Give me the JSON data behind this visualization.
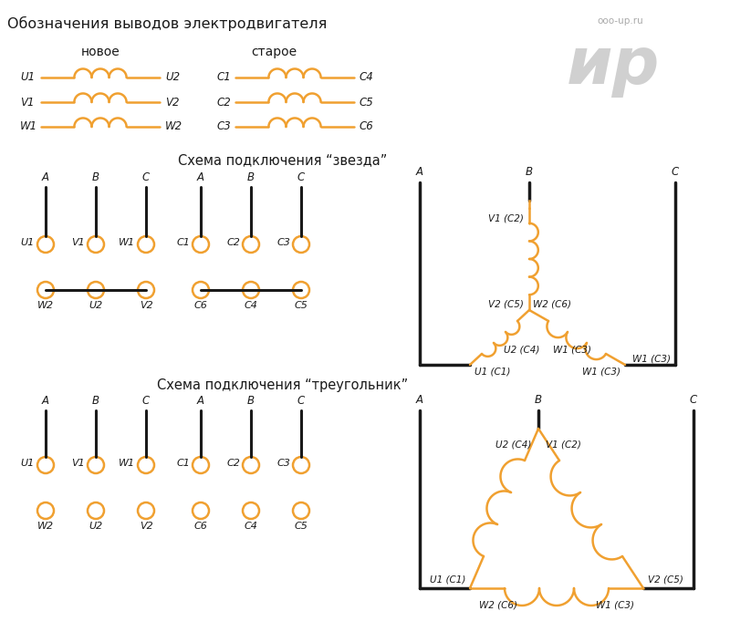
{
  "title": "Обозначения выводов электродвигателя",
  "orange": "#F0A030",
  "black": "#1a1a1a",
  "gray": "#aaaaaa",
  "bg": "#ffffff",
  "star_title": "Схема подключения “звезда”",
  "tri_title": "Схема подключения “треугольник”",
  "logo_text1": "ooo-up.ru",
  "logo_text2": "ир"
}
